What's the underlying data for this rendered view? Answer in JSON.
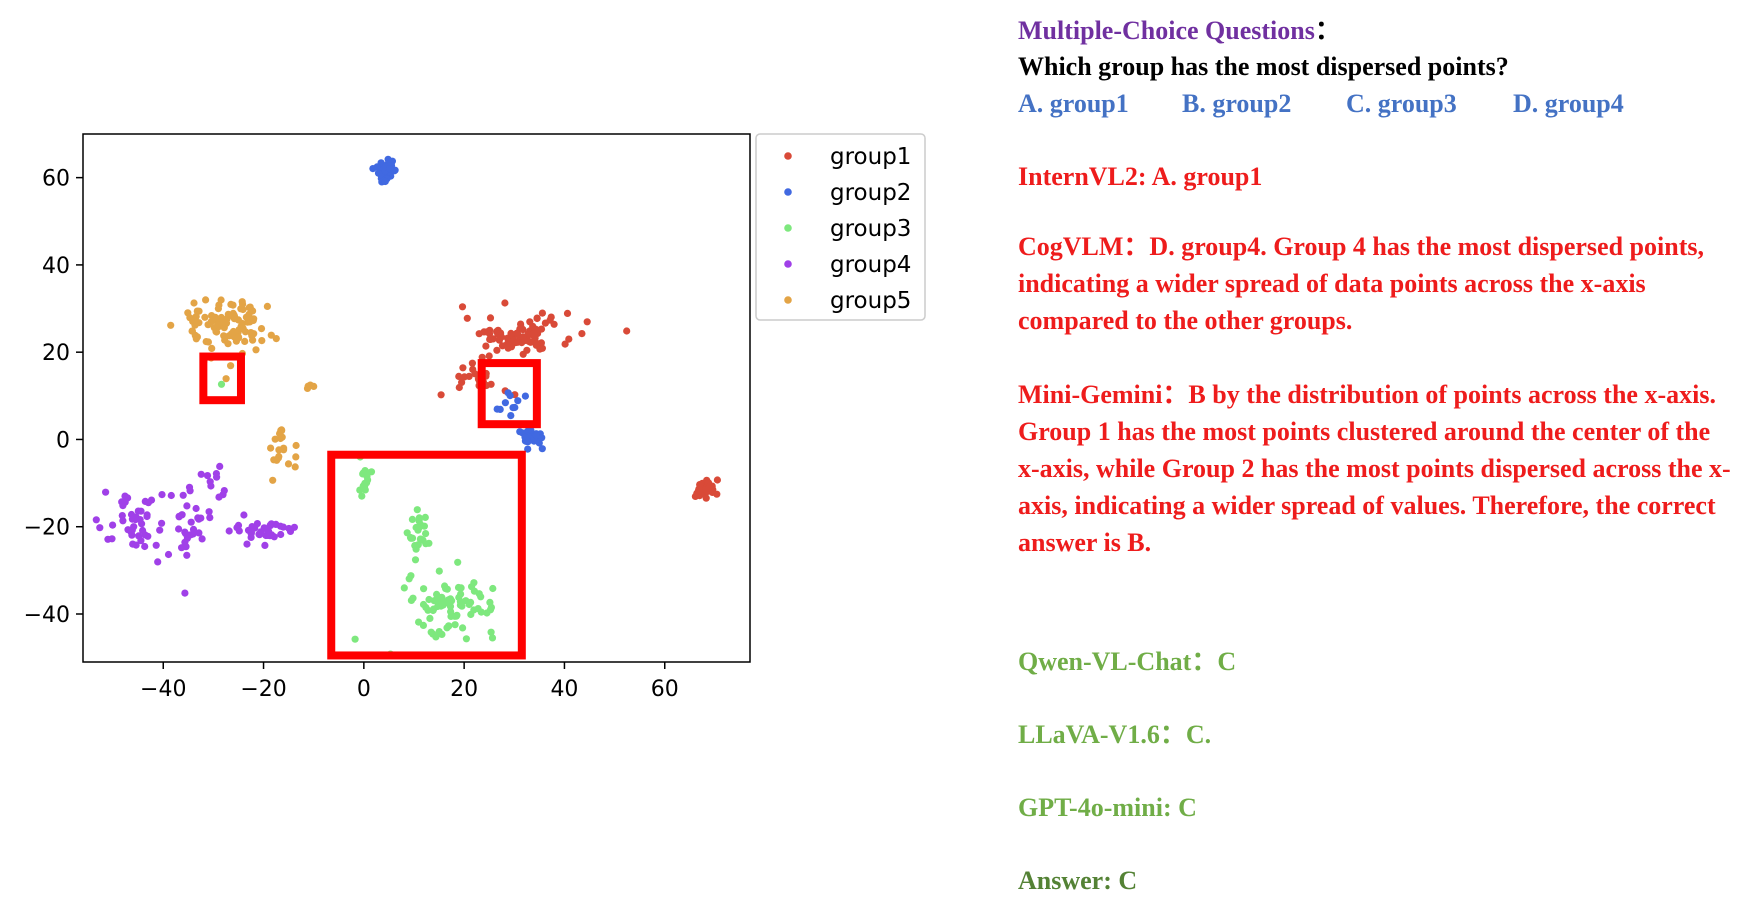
{
  "chart_data": {
    "type": "scatter",
    "xlim": [
      -56,
      77
    ],
    "ylim": [
      -51,
      70
    ],
    "xticks": [
      -40,
      -20,
      0,
      20,
      40,
      60
    ],
    "yticks": [
      -40,
      -20,
      0,
      20,
      40,
      60
    ],
    "xtick_labels": [
      "−40",
      "−20",
      "0",
      "20",
      "40",
      "60"
    ],
    "ytick_labels": [
      "−40",
      "−20",
      "0",
      "20",
      "40",
      "60"
    ],
    "legend_position": "outside-right-top",
    "series": [
      {
        "name": "group1",
        "color": "#d94a38",
        "clusters": [
          {
            "cx": 31,
            "cy": 24,
            "sx": 5.5,
            "sy": 2.2,
            "n": 80
          },
          {
            "cx": 22,
            "cy": 14,
            "sx": 3.5,
            "sy": 2.5,
            "n": 25
          },
          {
            "cx": 68,
            "cy": -11.5,
            "sx": 1.3,
            "sy": 1.2,
            "n": 30
          }
        ]
      },
      {
        "name": "group2",
        "color": "#4169e1",
        "clusters": [
          {
            "cx": 4.5,
            "cy": 61.5,
            "sx": 1.2,
            "sy": 1.5,
            "n": 30
          },
          {
            "cx": 33.5,
            "cy": 0.5,
            "sx": 1.2,
            "sy": 1.1,
            "n": 25
          },
          {
            "cx": 30,
            "cy": 8,
            "sx": 1.5,
            "sy": 1.5,
            "n": 10
          }
        ]
      },
      {
        "name": "group3",
        "color": "#7ee87e",
        "clusters": [
          {
            "cx": 17.5,
            "cy": -38,
            "sx": 4.5,
            "sy": 3.2,
            "n": 80
          },
          {
            "cx": 11,
            "cy": -21,
            "sx": 1.2,
            "sy": 2.5,
            "n": 25
          },
          {
            "cx": 0,
            "cy": -9,
            "sx": 0.8,
            "sy": 2.5,
            "n": 15
          },
          {
            "cx": -28.5,
            "cy": 13,
            "sx": 0.3,
            "sy": 0.3,
            "n": 1
          }
        ]
      },
      {
        "name": "group4",
        "color": "#a040e8",
        "clusters": [
          {
            "cx": -45,
            "cy": -20,
            "sx": 3.5,
            "sy": 3.5,
            "n": 45
          },
          {
            "cx": -35,
            "cy": -19,
            "sx": 3,
            "sy": 4,
            "n": 30
          },
          {
            "cx": -20,
            "cy": -21,
            "sx": 3,
            "sy": 1.6,
            "n": 35
          },
          {
            "cx": -29,
            "cy": -10,
            "sx": 2,
            "sy": 2.5,
            "n": 10
          }
        ]
      },
      {
        "name": "group5",
        "color": "#e3a446",
        "clusters": [
          {
            "cx": -27.5,
            "cy": 26,
            "sx": 4.5,
            "sy": 3.8,
            "n": 100
          },
          {
            "cx": -16.5,
            "cy": -1.5,
            "sx": 1.3,
            "sy": 3,
            "n": 20
          },
          {
            "cx": -11,
            "cy": 12.5,
            "sx": 0.6,
            "sy": 0.4,
            "n": 4
          }
        ]
      }
    ],
    "highlight_boxes": [
      {
        "x0": -32,
        "x1": -24.5,
        "y0": 9,
        "y1": 19
      },
      {
        "x0": 23.5,
        "x1": 34.5,
        "y0": 3.5,
        "y1": 17.5
      },
      {
        "x0": -6.5,
        "x1": 31.5,
        "y0": -49.5,
        "y1": -3.5
      }
    ]
  },
  "qa": {
    "heading": "Multiple-Choice Questions",
    "heading_colon": "：",
    "question": "Which group has the most dispersed points?",
    "options": [
      "A. group1",
      "B. group2",
      "C. group3",
      "D. group4"
    ],
    "answers": [
      {
        "text": "InternVL2:  A. group1"
      },
      {
        "text": "CogVLM：D. group4. Group 4 has the most dispersed points, indicating a wider spread of data points across the x-axis compared to the other groups."
      },
      {
        "text": "Mini-Gemini：B by the distribution of points across the x-axis. Group 1 has the most points clustered around the center of the x-axis, while Group 2 has the most points dispersed across the x-axis, indicating a wider spread of values. Therefore, the correct answer is B."
      },
      {
        "text": "Qwen-VL-Chat：C"
      },
      {
        "text": "LLaVA-V1.6：C."
      },
      {
        "text": "GPT-4o-mini: C"
      }
    ],
    "final_answer": "Answer: C"
  }
}
